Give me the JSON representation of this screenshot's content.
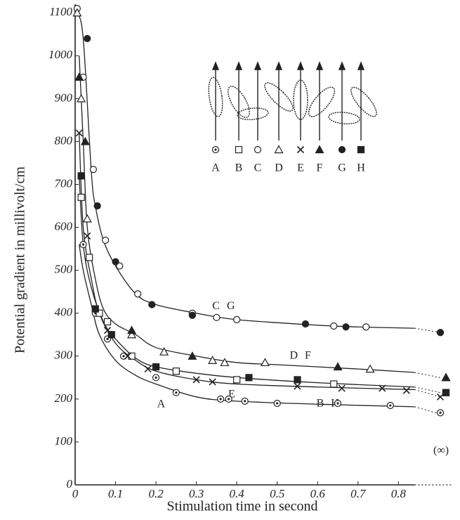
{
  "chart_data": {
    "type": "scatter",
    "xlabel": "Stimulation time in second",
    "ylabel": "Potential gradient in millivolt/cm",
    "xlim": [
      0,
      0.935
    ],
    "ylim": [
      0,
      1120
    ],
    "xticks": [
      0,
      0.1,
      0.2,
      0.3,
      0.4,
      0.5,
      0.6,
      0.7,
      0.8
    ],
    "yticks": [
      0,
      100,
      200,
      300,
      400,
      500,
      600,
      700,
      800,
      900,
      1000,
      1100
    ],
    "infinity_label": "(∞)",
    "curves": [
      {
        "label": "C G",
        "x": [
          0.005,
          0.02,
          0.04,
          0.05,
          0.07,
          0.1,
          0.15,
          0.2,
          0.3,
          0.4,
          0.6,
          0.7,
          0.84
        ],
        "values": [
          1100,
          1040,
          730,
          650,
          570,
          510,
          445,
          420,
          400,
          385,
          372,
          368,
          365
        ],
        "value_at_infinity": 355
      },
      {
        "label": "D F",
        "x": [
          0.01,
          0.02,
          0.03,
          0.05,
          0.07,
          0.1,
          0.15,
          0.2,
          0.3,
          0.4,
          0.5,
          0.7,
          0.84
        ],
        "values": [
          1000,
          800,
          600,
          480,
          410,
          375,
          350,
          320,
          300,
          285,
          280,
          270,
          262
        ],
        "value_at_infinity": 250
      },
      {
        "label": "E",
        "x": [
          0.01,
          0.02,
          0.04,
          0.06,
          0.1,
          0.15,
          0.2,
          0.3,
          0.4,
          0.6,
          0.84
        ],
        "values": [
          820,
          600,
          480,
          400,
          330,
          290,
          265,
          245,
          235,
          228,
          222
        ],
        "value_at_infinity": 205
      },
      {
        "label": "B H",
        "x": [
          0.01,
          0.02,
          0.04,
          0.07,
          0.1,
          0.15,
          0.2,
          0.3,
          0.4,
          0.6,
          0.84
        ],
        "values": [
          720,
          560,
          460,
          380,
          340,
          295,
          275,
          260,
          250,
          238,
          228
        ],
        "value_at_infinity": 215
      },
      {
        "label": "A",
        "x": [
          0.01,
          0.02,
          0.04,
          0.06,
          0.1,
          0.15,
          0.2,
          0.3,
          0.4,
          0.6,
          0.84
        ],
        "values": [
          560,
          500,
          420,
          350,
          290,
          255,
          235,
          205,
          195,
          188,
          182
        ],
        "value_at_infinity": 165
      }
    ],
    "series": [
      {
        "name": "A",
        "marker": "dotted-circle",
        "x": [
          0.02,
          0.05,
          0.08,
          0.12,
          0.2,
          0.25,
          0.36,
          0.38,
          0.42,
          0.5,
          0.65,
          0.78
        ],
        "values": [
          560,
          400,
          340,
          300,
          250,
          215,
          200,
          200,
          195,
          190,
          190,
          185
        ],
        "value_at_infinity": 168
      },
      {
        "name": "B",
        "marker": "open-square",
        "x": [
          0.015,
          0.035,
          0.06,
          0.08,
          0.14,
          0.25,
          0.4,
          0.64
        ],
        "values": [
          670,
          530,
          400,
          380,
          300,
          265,
          245,
          235
        ],
        "value_at_infinity": 215
      },
      {
        "name": "C",
        "marker": "open-circle",
        "x": [
          0.005,
          0.02,
          0.045,
          0.075,
          0.11,
          0.155,
          0.29,
          0.35,
          0.4,
          0.64,
          0.72
        ],
        "values": [
          1110,
          950,
          735,
          570,
          510,
          445,
          400,
          390,
          385,
          370,
          368
        ],
        "value_at_infinity": 355
      },
      {
        "name": "D",
        "marker": "open-triangle",
        "x": [
          0.005,
          0.015,
          0.03,
          0.14,
          0.22,
          0.34,
          0.37,
          0.47,
          0.73
        ],
        "values": [
          1100,
          900,
          620,
          350,
          310,
          290,
          285,
          285,
          270
        ],
        "value_at_infinity": 250
      },
      {
        "name": "E",
        "marker": "cross",
        "x": [
          0.01,
          0.03,
          0.08,
          0.13,
          0.18,
          0.3,
          0.34,
          0.55,
          0.66,
          0.76,
          0.82
        ],
        "values": [
          820,
          580,
          360,
          300,
          270,
          245,
          240,
          230,
          225,
          225,
          220
        ],
        "value_at_infinity": 205
      },
      {
        "name": "F",
        "marker": "filled-triangle",
        "x": [
          0.01,
          0.025,
          0.14,
          0.29,
          0.65
        ],
        "values": [
          950,
          800,
          360,
          300,
          275
        ],
        "value_at_infinity": 250
      },
      {
        "name": "G",
        "marker": "filled-circle",
        "x": [
          0.03,
          0.055,
          0.1,
          0.19,
          0.29,
          0.57,
          0.67
        ],
        "values": [
          1040,
          650,
          520,
          420,
          395,
          375,
          368
        ],
        "value_at_infinity": 355
      },
      {
        "name": "H",
        "marker": "filled-square",
        "x": [
          0.015,
          0.05,
          0.09,
          0.2,
          0.43,
          0.55
        ],
        "values": [
          720,
          410,
          350,
          275,
          250,
          245
        ],
        "value_at_infinity": 215
      }
    ]
  }
}
